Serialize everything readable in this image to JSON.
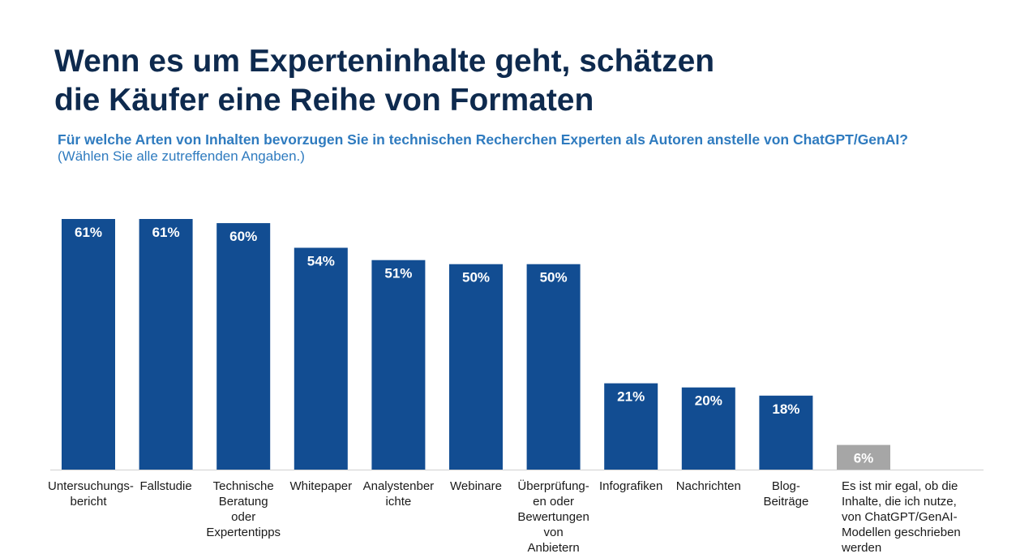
{
  "header": {
    "title_line1": "Wenn es um Experteninhalte geht, schätzen",
    "title_line2": "die Käufer eine Reihe von Formaten",
    "question": "Für welche Arten von Inhalten bevorzugen Sie in technischen Recherchen Experten als Autoren anstelle von ChatGPT/GenAI?",
    "instruction": "(Wählen Sie alle zutreffenden Angaben.)"
  },
  "chart_data": {
    "type": "bar",
    "categories": [
      "Untersuchungs-\nbericht",
      "Fallstudie",
      "Technische\nBeratung\noder\nExpertentipps",
      "Whitepaper",
      "Analystenber\nichte",
      "Webinare",
      "Überprüfung-\nen oder\nBewertungen\nvon\nAnbietern",
      "Infografiken",
      "Nachrichten",
      "Blog-\nBeiträge",
      "Es ist mir egal, ob die\nInhalte, die ich nutze,\nvon ChatGPT/GenAI-\nModellen geschrieben\nwerden"
    ],
    "values": [
      61,
      61,
      60,
      54,
      51,
      50,
      50,
      21,
      20,
      18,
      6
    ],
    "value_labels": [
      "61%",
      "61%",
      "60%",
      "54%",
      "51%",
      "50%",
      "50%",
      "21%",
      "20%",
      "18%",
      "6%"
    ],
    "unit": "%",
    "colors": [
      "#124d92",
      "#124d92",
      "#124d92",
      "#124d92",
      "#124d92",
      "#124d92",
      "#124d92",
      "#124d92",
      "#124d92",
      "#124d92",
      "#a6a6a6"
    ],
    "ylim": [
      0,
      61
    ],
    "grid": false,
    "legend": "none",
    "title": "Wenn es um Experteninhalte geht, schätzen die Käufer eine Reihe von Formaten",
    "xlabel": "",
    "ylabel": ""
  }
}
